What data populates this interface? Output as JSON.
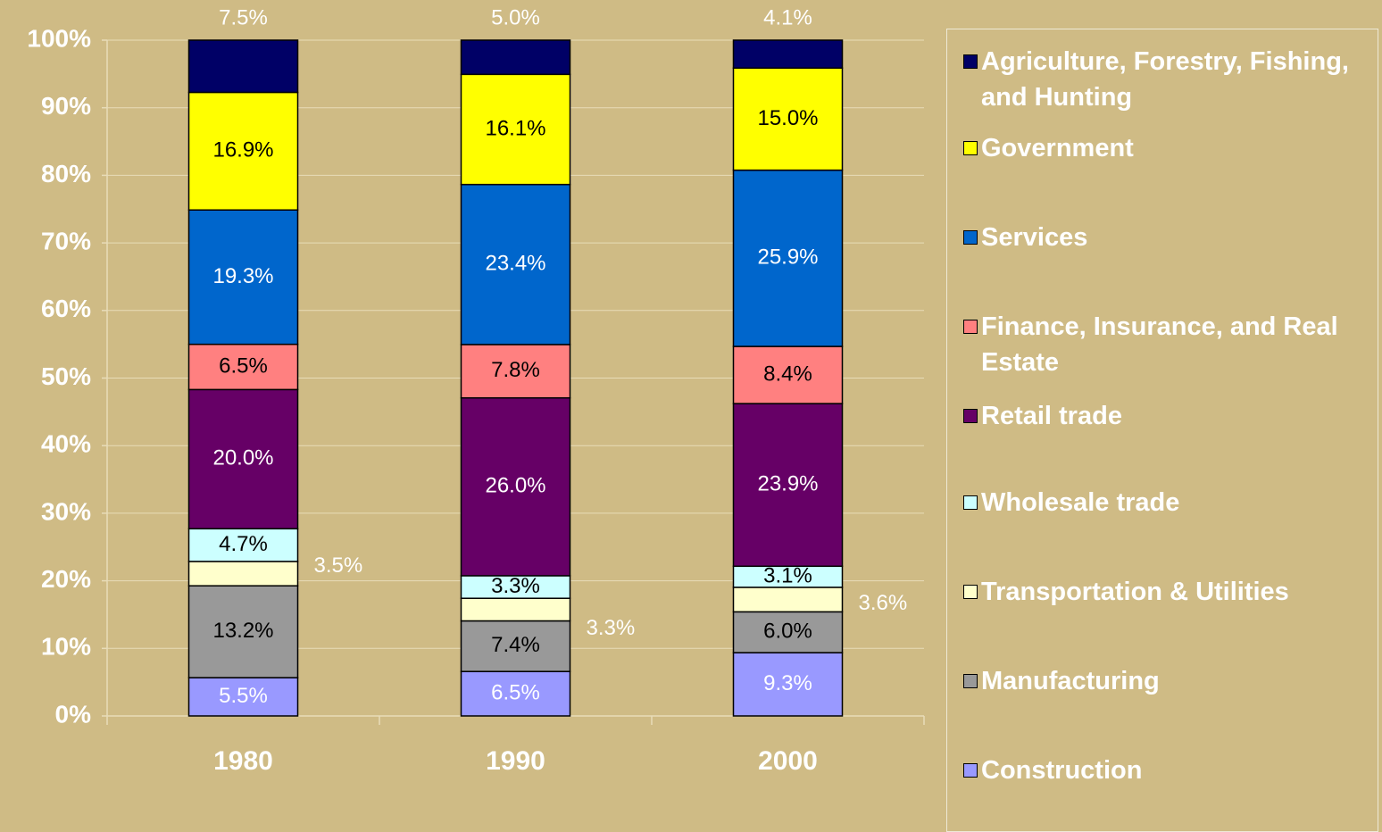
{
  "chart_data": {
    "type": "bar",
    "stacking": "percent",
    "categories": [
      "1980",
      "1990",
      "2000"
    ],
    "ylim": [
      0,
      100
    ],
    "yticks": [
      {
        "value": 0,
        "label": "0%"
      },
      {
        "value": 10,
        "label": "10%"
      },
      {
        "value": 20,
        "label": "20%"
      },
      {
        "value": 30,
        "label": "30%"
      },
      {
        "value": 40,
        "label": "40%"
      },
      {
        "value": 50,
        "label": "50%"
      },
      {
        "value": 60,
        "label": "60%"
      },
      {
        "value": 70,
        "label": "70%"
      },
      {
        "value": 80,
        "label": "80%"
      },
      {
        "value": 90,
        "label": "90%"
      },
      {
        "value": 100,
        "label": "100%"
      }
    ],
    "grid": true,
    "legend": "right",
    "series": [
      {
        "name": "Construction",
        "color": "#9999ff",
        "label_color": "#ffffff",
        "label_position": "inside",
        "values": [
          5.5,
          6.5,
          9.3
        ],
        "value_labels": [
          "5.5%",
          "6.5%",
          "9.3%"
        ]
      },
      {
        "name": "Manufacturing",
        "color": "#999999",
        "label_color": "#000000",
        "label_position": "inside",
        "values": [
          13.2,
          7.4,
          6.0
        ],
        "value_labels": [
          "13.2%",
          "7.4%",
          "6.0%"
        ]
      },
      {
        "name": "Transportation & Utilities",
        "color": "#ffffcc",
        "label_color": "#ffffff",
        "label_position": "right",
        "values": [
          3.5,
          3.3,
          3.6
        ],
        "value_labels": [
          "3.5%",
          "3.3%",
          "3.6%"
        ]
      },
      {
        "name": "Wholesale trade",
        "color": "#ccffff",
        "label_color": "#000000",
        "label_position": "inside",
        "values": [
          4.7,
          3.3,
          3.1
        ],
        "value_labels": [
          "4.7%",
          "3.3%",
          "3.1%"
        ]
      },
      {
        "name": "Retail trade",
        "color": "#660066",
        "label_color": "#ffffff",
        "label_position": "inside",
        "values": [
          20.0,
          26.0,
          23.9
        ],
        "value_labels": [
          "20.0%",
          "26.0%",
          "23.9%"
        ]
      },
      {
        "name": "Finance, Insurance, and Real Estate",
        "color": "#ff8080",
        "label_color": "#000000",
        "label_position": "inside",
        "values": [
          6.5,
          7.8,
          8.4
        ],
        "value_labels": [
          "6.5%",
          "7.8%",
          "8.4%"
        ]
      },
      {
        "name": "Services",
        "color": "#0066cc",
        "label_color": "#ffffff",
        "label_position": "inside",
        "values": [
          19.3,
          23.4,
          25.9
        ],
        "value_labels": [
          "19.3%",
          "23.4%",
          "25.9%"
        ]
      },
      {
        "name": "Government",
        "color": "#ffff00",
        "label_color": "#000000",
        "label_position": "inside",
        "values": [
          16.9,
          16.1,
          15.0
        ],
        "value_labels": [
          "16.9%",
          "16.1%",
          "15.0%"
        ]
      },
      {
        "name": "Agriculture, Forestry, Fishing, and Hunting",
        "color": "#000066",
        "label_color": "#ffffff",
        "label_position": "above",
        "values": [
          7.5,
          5.0,
          4.1
        ],
        "value_labels": [
          "7.5%",
          "5.0%",
          "4.1%"
        ]
      }
    ]
  }
}
